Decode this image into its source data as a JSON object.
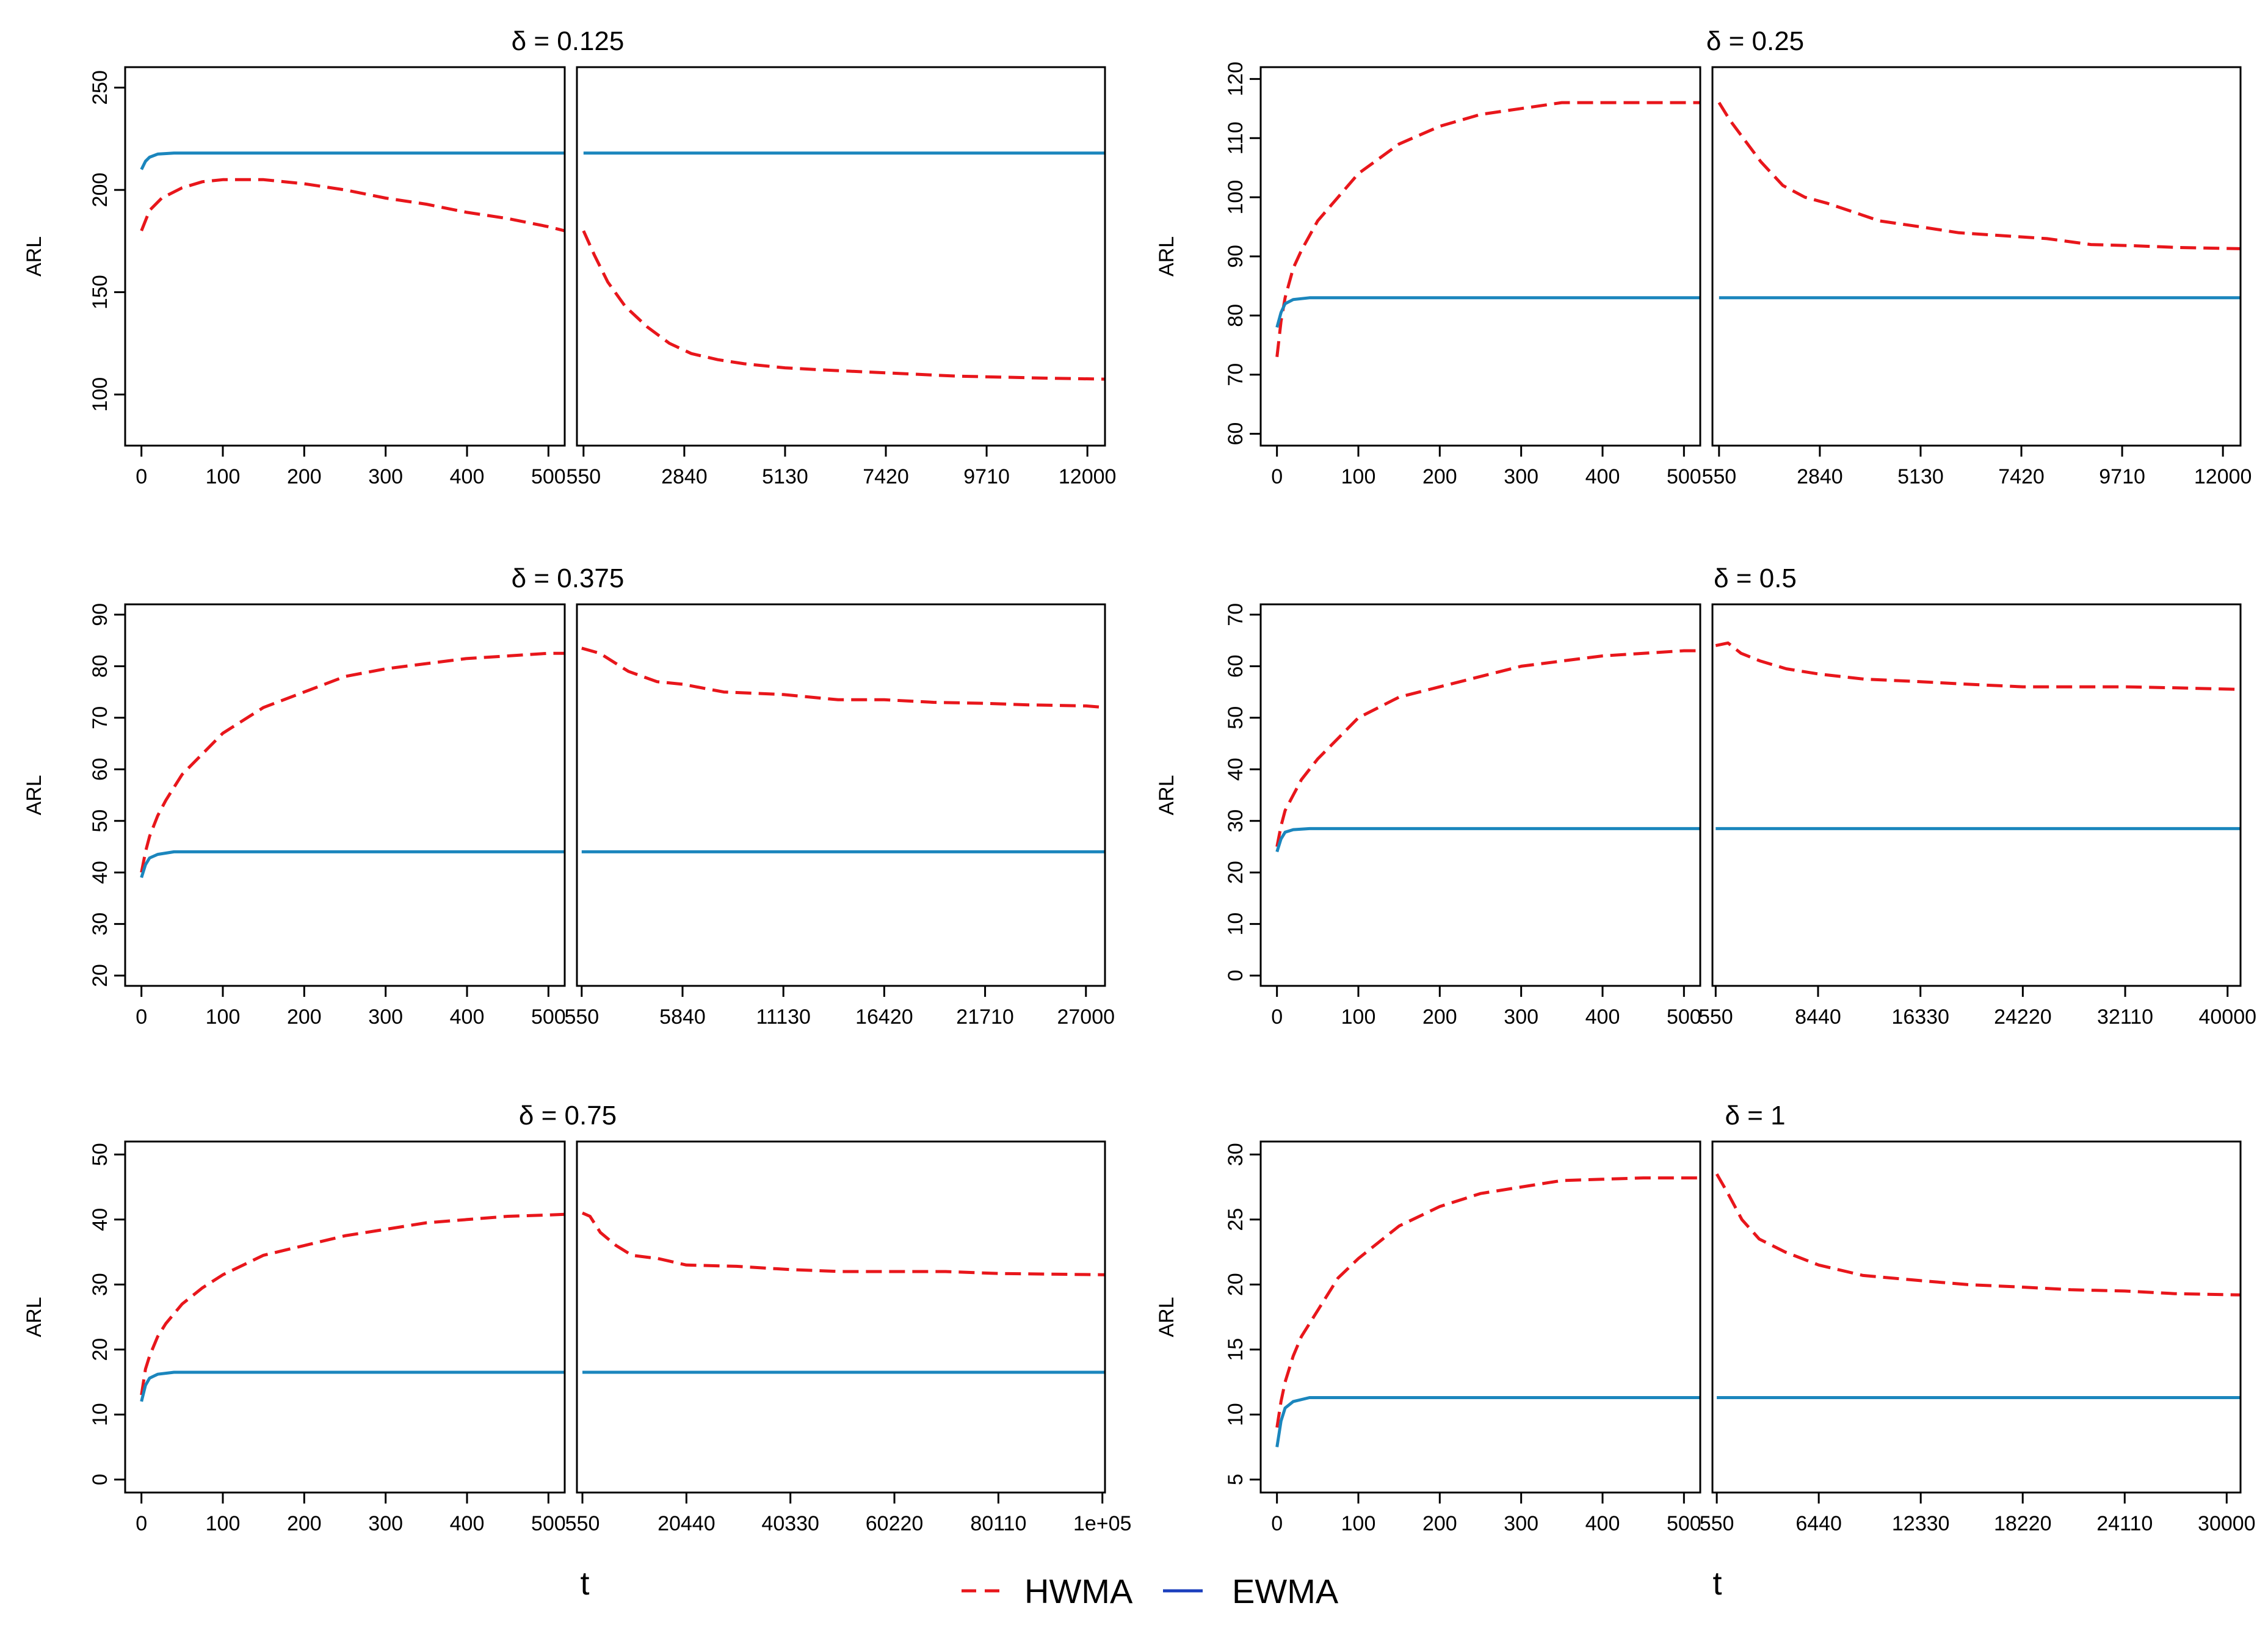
{
  "colors": {
    "HWMA": "#e8161b",
    "EWMA": "#1b86bd"
  },
  "legend": {
    "entries": [
      "HWMA",
      "EWMA"
    ],
    "placement": "bottom-center"
  },
  "x_axis_label": "t",
  "chart_data": [
    {
      "type": "line",
      "title": "δ = 0.125",
      "ylabel": "ARL",
      "ylim": [
        75,
        260
      ],
      "yticks": [
        "100",
        "150",
        "200",
        "250"
      ],
      "ytick_values": [
        100,
        150,
        200,
        250
      ],
      "left": {
        "xlim": [
          -20,
          520
        ],
        "xticks": [
          "0",
          "100",
          "200",
          "300",
          "400",
          "500"
        ],
        "xtick_values": [
          0,
          100,
          200,
          300,
          400,
          500
        ],
        "series": [
          {
            "name": "HWMA",
            "x": [
              0,
              10,
              25,
              50,
              75,
              100,
              150,
              200,
              250,
              300,
              350,
              400,
              450,
              500,
              520
            ],
            "y": [
              180,
              190,
              196,
              201,
              204,
              205,
              205,
              203,
              200,
              196,
              193,
              189,
              186,
              182,
              180
            ]
          },
          {
            "name": "EWMA",
            "x": [
              0,
              5,
              10,
              20,
              40,
              100,
              200,
              300,
              400,
              520
            ],
            "y": [
              210,
              214,
              216,
              217.5,
              218,
              218,
              218,
              218,
              218,
              218
            ]
          }
        ]
      },
      "right": {
        "xlim": [
          400,
          12400
        ],
        "xticks": [
          "550",
          "2840",
          "5130",
          "7420",
          "9710",
          "12000"
        ],
        "xtick_values": [
          550,
          2840,
          5130,
          7420,
          9710,
          12000
        ],
        "series": [
          {
            "name": "HWMA",
            "x": [
              550,
              800,
              1100,
              1500,
              2000,
              2500,
              3000,
              3600,
              4200,
              5130,
              6000,
              7000,
              8000,
              9000,
              10000,
              11000,
              12400
            ],
            "y": [
              180,
              168,
              155,
              143,
              133,
              125,
              120,
              117,
              115,
              113,
              112,
              111,
              110,
              109,
              108.5,
              108,
              107.5
            ]
          },
          {
            "name": "EWMA",
            "x": [
              550,
              12400
            ],
            "y": [
              218,
              218
            ]
          }
        ]
      }
    },
    {
      "type": "line",
      "title": "δ = 0.25",
      "ylabel": "ARL",
      "ylim": [
        58,
        122
      ],
      "yticks": [
        "60",
        "70",
        "80",
        "90",
        "100",
        "110",
        "120"
      ],
      "ytick_values": [
        60,
        70,
        80,
        90,
        100,
        110,
        120
      ],
      "left": {
        "xlim": [
          -20,
          520
        ],
        "xticks": [
          "0",
          "100",
          "200",
          "300",
          "400",
          "500"
        ],
        "xtick_values": [
          0,
          100,
          200,
          300,
          400,
          500
        ],
        "series": [
          {
            "name": "HWMA",
            "x": [
              0,
              5,
              10,
              20,
              30,
              50,
              75,
              100,
              150,
              200,
              250,
              300,
              350,
              400,
              450,
              500,
              520
            ],
            "y": [
              73,
              79,
              83,
              88,
              91,
              96,
              100,
              104,
              109,
              112,
              114,
              115,
              116,
              116,
              116,
              116,
              116
            ]
          },
          {
            "name": "EWMA",
            "x": [
              0,
              5,
              10,
              20,
              40,
              100,
              200,
              300,
              400,
              520
            ],
            "y": [
              78,
              80.5,
              82,
              82.7,
              83,
              83,
              83,
              83,
              83,
              83
            ]
          }
        ]
      },
      "right": {
        "xlim": [
          400,
          12400
        ],
        "xticks": [
          "550",
          "2840",
          "5130",
          "7420",
          "9710",
          "12000"
        ],
        "xtick_values": [
          550,
          2840,
          5130,
          7420,
          9710,
          12000
        ],
        "series": [
          {
            "name": "HWMA",
            "x": [
              550,
              800,
              1100,
              1500,
              2000,
              2500,
              3000,
              3600,
              4200,
              5130,
              6000,
              7000,
              8000,
              9000,
              10000,
              11000,
              12400
            ],
            "y": [
              116,
              113,
              110,
              106,
              102,
              100,
              99,
              97.5,
              96,
              95,
              94,
              93.5,
              93,
              92,
              91.8,
              91.5,
              91.3
            ]
          },
          {
            "name": "EWMA",
            "x": [
              550,
              12400
            ],
            "y": [
              83,
              83
            ]
          }
        ]
      }
    },
    {
      "type": "line",
      "title": "δ = 0.375",
      "ylabel": "ARL",
      "ylim": [
        18,
        92
      ],
      "yticks": [
        "20",
        "30",
        "40",
        "50",
        "60",
        "70",
        "80",
        "90"
      ],
      "ytick_values": [
        20,
        30,
        40,
        50,
        60,
        70,
        80,
        90
      ],
      "left": {
        "xlim": [
          -20,
          520
        ],
        "xticks": [
          "0",
          "100",
          "200",
          "300",
          "400",
          "500"
        ],
        "xtick_values": [
          0,
          100,
          200,
          300,
          400,
          500
        ],
        "series": [
          {
            "name": "HWMA",
            "x": [
              0,
              5,
              10,
              20,
              30,
              50,
              75,
              100,
              150,
              200,
              250,
              300,
              350,
              400,
              450,
              500,
              520
            ],
            "y": [
              40,
              44,
              47,
              51,
              54,
              59,
              63,
              67,
              72,
              75,
              78,
              79.5,
              80.5,
              81.5,
              82,
              82.5,
              82.5
            ]
          },
          {
            "name": "EWMA",
            "x": [
              0,
              5,
              10,
              20,
              40,
              100,
              200,
              300,
              400,
              520
            ],
            "y": [
              39,
              41.5,
              42.8,
              43.5,
              44,
              44,
              44,
              44,
              44,
              44
            ]
          }
        ]
      },
      "right": {
        "xlim": [
          300,
          28000
        ],
        "xticks": [
          "550",
          "5840",
          "11130",
          "16420",
          "21710",
          "27000"
        ],
        "xtick_values": [
          550,
          5840,
          11130,
          16420,
          21710,
          27000
        ],
        "series": [
          {
            "name": "HWMA",
            "x": [
              550,
              1500,
              3000,
              4500,
              5840,
              8000,
              11130,
              14000,
              16420,
              19000,
              21710,
              24000,
              27000,
              28000
            ],
            "y": [
              83.5,
              82.5,
              79,
              77,
              76.5,
              75,
              74.5,
              73.5,
              73.5,
              73,
              72.8,
              72.5,
              72.3,
              72
            ]
          },
          {
            "name": "EWMA",
            "x": [
              550,
              28000
            ],
            "y": [
              44,
              44
            ]
          }
        ]
      }
    },
    {
      "type": "line",
      "title": "δ = 0.5",
      "ylabel": "ARL",
      "ylim": [
        -2,
        72
      ],
      "yticks": [
        "0",
        "10",
        "20",
        "30",
        "40",
        "50",
        "60",
        "70"
      ],
      "ytick_values": [
        0,
        10,
        20,
        30,
        40,
        50,
        60,
        70
      ],
      "left": {
        "xlim": [
          -20,
          520
        ],
        "xticks": [
          "0",
          "100",
          "200",
          "300",
          "400",
          "500"
        ],
        "xtick_values": [
          0,
          100,
          200,
          300,
          400,
          500
        ],
        "series": [
          {
            "name": "HWMA",
            "x": [
              0,
              5,
              10,
              20,
              30,
              50,
              75,
              100,
              150,
              200,
              250,
              300,
              350,
              400,
              450,
              500,
              520
            ],
            "y": [
              25,
              29,
              32,
              35,
              38,
              42,
              46,
              50,
              54,
              56,
              58,
              60,
              61,
              62,
              62.5,
              63,
              63
            ]
          },
          {
            "name": "EWMA",
            "x": [
              0,
              5,
              10,
              20,
              40,
              100,
              200,
              300,
              400,
              520
            ],
            "y": [
              24,
              26.5,
              27.8,
              28.3,
              28.5,
              28.5,
              28.5,
              28.5,
              28.5,
              28.5
            ]
          }
        ]
      },
      "right": {
        "xlim": [
          300,
          41000
        ],
        "xticks": [
          "550",
          "8440",
          "16330",
          "24220",
          "32110",
          "40000"
        ],
        "xtick_values": [
          550,
          8440,
          16330,
          24220,
          32110,
          40000
        ],
        "series": [
          {
            "name": "HWMA",
            "x": [
              550,
              1500,
              2500,
              4000,
              6000,
              8440,
              12000,
              16330,
              20000,
              24220,
              28000,
              32110,
              36000,
              41000
            ],
            "y": [
              64,
              64.5,
              62.5,
              61,
              59.5,
              58.5,
              57.5,
              57,
              56.5,
              56,
              56,
              56,
              55.8,
              55.5
            ]
          },
          {
            "name": "EWMA",
            "x": [
              550,
              41000
            ],
            "y": [
              28.5,
              28.5
            ]
          }
        ]
      }
    },
    {
      "type": "line",
      "title": "δ = 0.75",
      "ylabel": "ARL",
      "ylim": [
        -2,
        52
      ],
      "yticks": [
        "0",
        "10",
        "20",
        "30",
        "40",
        "50"
      ],
      "ytick_values": [
        0,
        10,
        20,
        30,
        40,
        50
      ],
      "left": {
        "xlim": [
          -20,
          520
        ],
        "xticks": [
          "0",
          "100",
          "200",
          "300",
          "400",
          "500"
        ],
        "xtick_values": [
          0,
          100,
          200,
          300,
          400,
          500
        ],
        "series": [
          {
            "name": "HWMA",
            "x": [
              0,
              5,
              10,
              20,
              30,
              50,
              75,
              100,
              150,
              200,
              250,
              300,
              350,
              400,
              450,
              500,
              520
            ],
            "y": [
              13,
              17,
              19,
              22,
              24,
              27,
              29.5,
              31.5,
              34.5,
              36,
              37.5,
              38.5,
              39.5,
              40,
              40.5,
              40.7,
              40.8
            ]
          },
          {
            "name": "EWMA",
            "x": [
              0,
              5,
              10,
              20,
              40,
              100,
              200,
              300,
              400,
              520
            ],
            "y": [
              12,
              14.5,
              15.6,
              16.2,
              16.5,
              16.5,
              16.5,
              16.5,
              16.5,
              16.5
            ]
          }
        ]
      },
      "right": {
        "xlim": [
          -500,
          100500
        ],
        "xticks": [
          "550",
          "20440",
          "40330",
          "60220",
          "80110",
          "1e+05"
        ],
        "xtick_values": [
          550,
          20440,
          40330,
          60220,
          80110,
          100000
        ],
        "series": [
          {
            "name": "HWMA",
            "x": [
              550,
              2000,
              4000,
              7000,
              10000,
              15000,
              20440,
              30000,
              40330,
              50000,
              60220,
              70000,
              80110,
              90000,
              100500
            ],
            "y": [
              41,
              40.5,
              38,
              36,
              34.5,
              34,
              33,
              32.8,
              32.3,
              32,
              32,
              32,
              31.7,
              31.6,
              31.5
            ]
          },
          {
            "name": "EWMA",
            "x": [
              550,
              100500
            ],
            "y": [
              16.5,
              16.5
            ]
          }
        ]
      }
    },
    {
      "type": "line",
      "title": "δ = 1",
      "ylabel": "ARL",
      "ylim": [
        4,
        31
      ],
      "yticks": [
        "5",
        "10",
        "15",
        "20",
        "25",
        "30"
      ],
      "ytick_values": [
        5,
        10,
        15,
        20,
        25,
        30
      ],
      "left": {
        "xlim": [
          -20,
          520
        ],
        "xticks": [
          "0",
          "100",
          "200",
          "300",
          "400",
          "500"
        ],
        "xtick_values": [
          0,
          100,
          200,
          300,
          400,
          500
        ],
        "series": [
          {
            "name": "HWMA",
            "x": [
              0,
              5,
              10,
              20,
              30,
              50,
              75,
              100,
              150,
              200,
              250,
              300,
              350,
              400,
              450,
              500,
              520
            ],
            "y": [
              9,
              11,
              12.5,
              14.5,
              16,
              18,
              20.5,
              22,
              24.5,
              26,
              27,
              27.5,
              28,
              28.1,
              28.2,
              28.2,
              28.2
            ]
          },
          {
            "name": "EWMA",
            "x": [
              0,
              5,
              10,
              20,
              40,
              100,
              200,
              300,
              400,
              520
            ],
            "y": [
              7.5,
              9.5,
              10.5,
              11,
              11.3,
              11.3,
              11.3,
              11.3,
              11.3,
              11.3
            ]
          }
        ]
      },
      "right": {
        "xlim": [
          300,
          30800
        ],
        "xticks": [
          "550",
          "6440",
          "12330",
          "18220",
          "24110",
          "30000"
        ],
        "xtick_values": [
          550,
          6440,
          12330,
          18220,
          24110,
          30000
        ],
        "series": [
          {
            "name": "HWMA",
            "x": [
              550,
              1200,
              2000,
              3000,
              4500,
              6440,
              9000,
              12330,
              15000,
              18220,
              21000,
              24110,
              27000,
              30800
            ],
            "y": [
              28.5,
              27,
              25,
              23.5,
              22.5,
              21.5,
              20.7,
              20.3,
              20,
              19.8,
              19.6,
              19.5,
              19.3,
              19.2
            ]
          },
          {
            "name": "EWMA",
            "x": [
              550,
              30800
            ],
            "y": [
              11.3,
              11.3
            ]
          }
        ]
      }
    }
  ]
}
